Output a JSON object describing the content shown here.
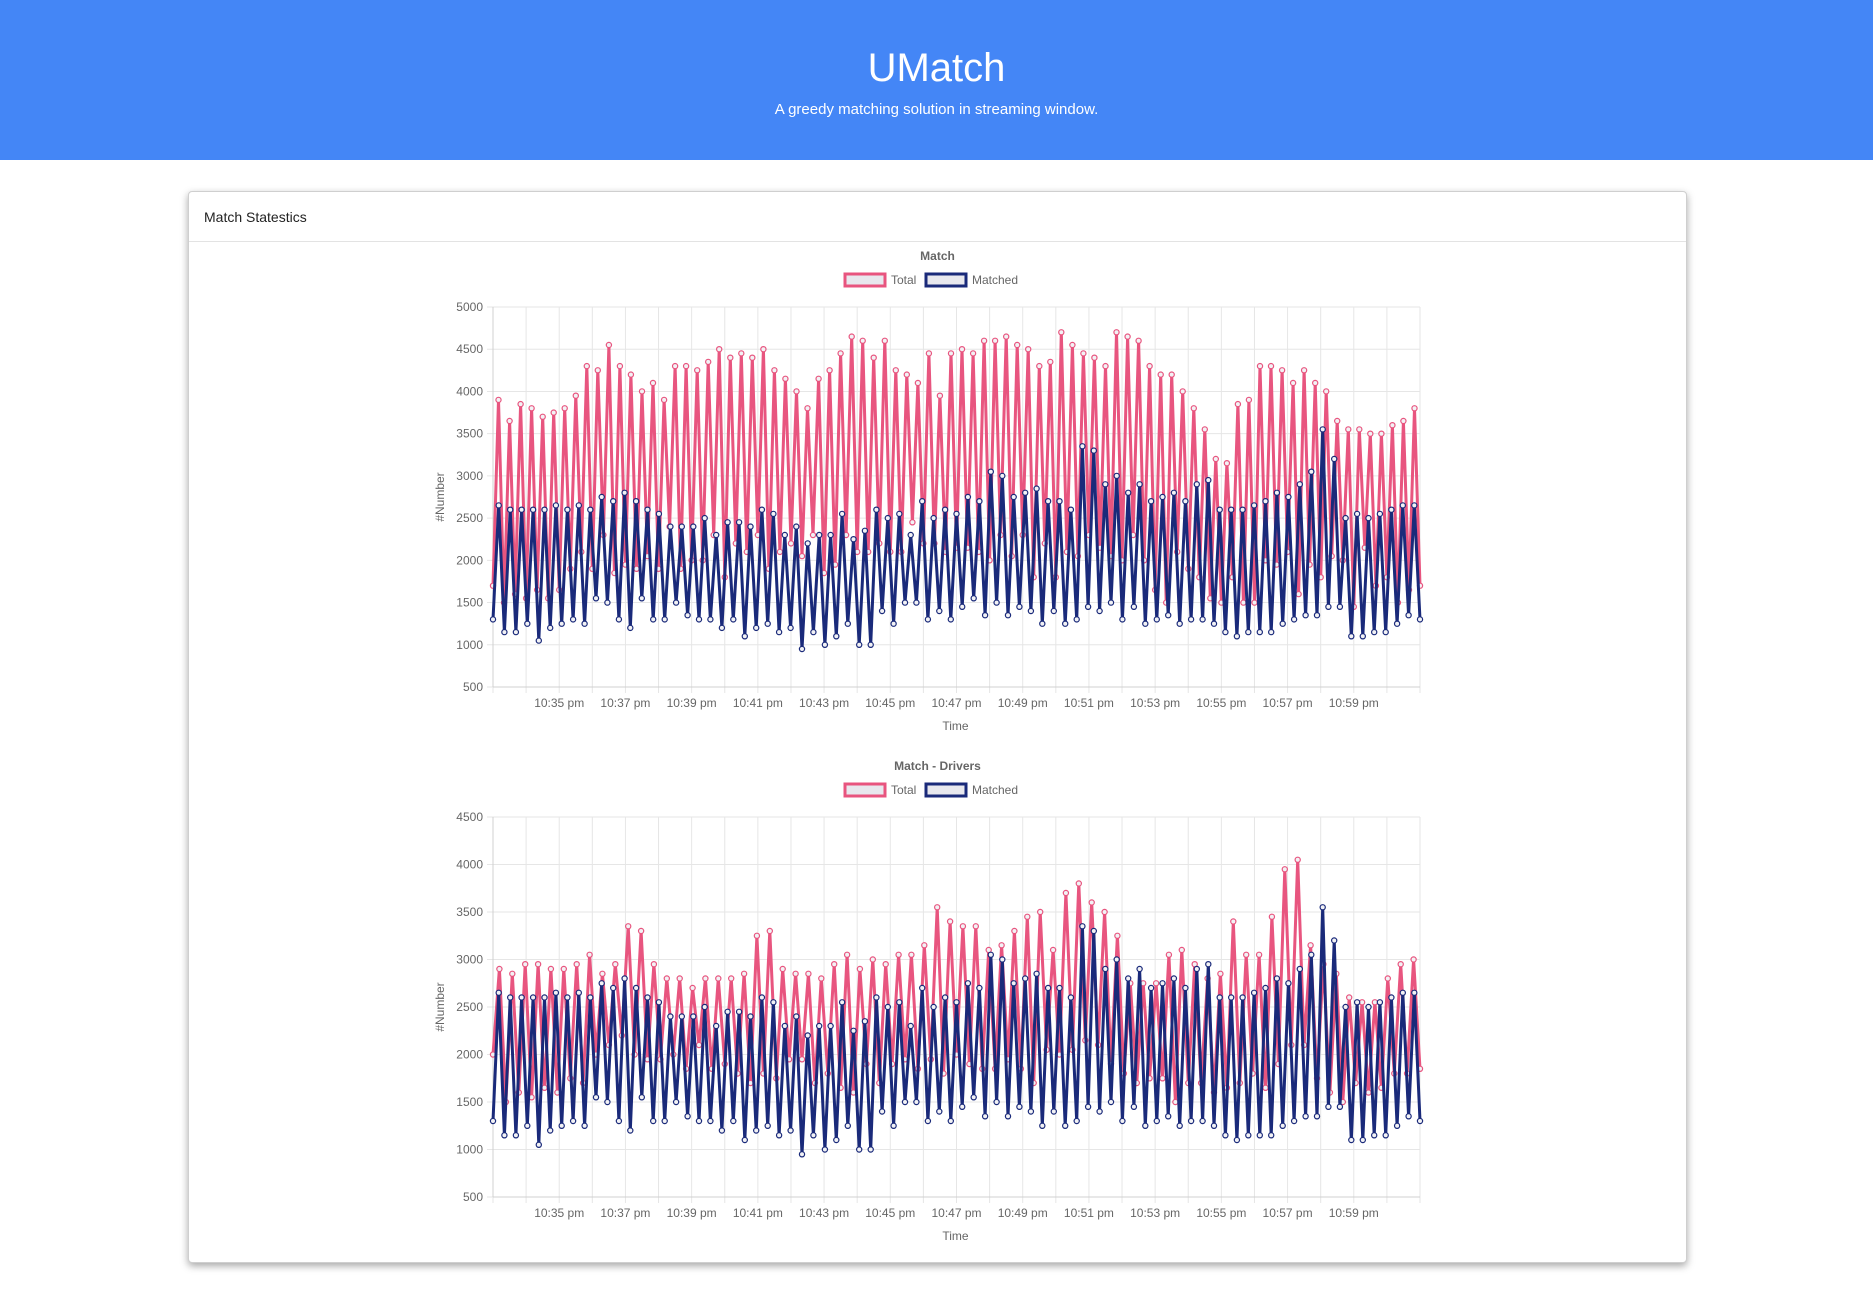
{
  "header": {
    "title": "UMatch",
    "subtitle": "A greedy matching solution in streaming window."
  },
  "card": {
    "title": "Match Statestics"
  },
  "colors": {
    "header_bg": "#4486f6",
    "total": "#e8557f",
    "matched": "#1a2a7a"
  },
  "chart_data": [
    {
      "type": "line",
      "title": "Match",
      "xlabel": "Time",
      "ylabel": "#Number",
      "ylim": [
        500,
        5000
      ],
      "yticks": [
        500,
        1000,
        1500,
        2000,
        2500,
        3000,
        3500,
        4000,
        4500,
        5000
      ],
      "xlim": [
        0,
        28
      ],
      "xticks": [
        {
          "label": "10:35 pm",
          "pos": 2
        },
        {
          "label": "10:37 pm",
          "pos": 4
        },
        {
          "label": "10:39 pm",
          "pos": 6
        },
        {
          "label": "10:41 pm",
          "pos": 8
        },
        {
          "label": "10:43 pm",
          "pos": 10
        },
        {
          "label": "10:45 pm",
          "pos": 12
        },
        {
          "label": "10:47 pm",
          "pos": 14
        },
        {
          "label": "10:49 pm",
          "pos": 16
        },
        {
          "label": "10:51 pm",
          "pos": 18
        },
        {
          "label": "10:53 pm",
          "pos": 20
        },
        {
          "label": "10:55 pm",
          "pos": 22
        },
        {
          "label": "10:57 pm",
          "pos": 24
        },
        {
          "label": "10:59 pm",
          "pos": 26
        }
      ],
      "legend": [
        "Total",
        "Matched"
      ],
      "series": [
        {
          "name": "Total",
          "values": [
            1700,
            3900,
            1500,
            3650,
            1600,
            3850,
            1550,
            3800,
            1650,
            3700,
            1550,
            3750,
            1650,
            3800,
            1900,
            3950,
            2100,
            4300,
            1900,
            4250,
            2300,
            4550,
            1850,
            4300,
            1950,
            4200,
            1900,
            4000,
            2050,
            4100,
            1900,
            3900,
            2400,
            4300,
            1900,
            4300,
            2000,
            4250,
            2000,
            4350,
            2300,
            4500,
            1800,
            4400,
            2200,
            4450,
            2100,
            4400,
            2300,
            4500,
            1900,
            4250,
            2100,
            4150,
            2200,
            4000,
            2050,
            3800,
            2300,
            4150,
            1850,
            4250,
            1950,
            4450,
            2300,
            4650,
            2100,
            4600,
            2100,
            4400,
            2200,
            4600,
            2100,
            4250,
            2100,
            4200,
            2450,
            4100,
            2200,
            4450,
            2200,
            3950,
            2100,
            4450,
            2150,
            4500,
            2150,
            4450,
            2100,
            4600,
            2000,
            4600,
            2300,
            4650,
            2050,
            4550,
            2300,
            4500,
            1800,
            4300,
            2200,
            4350,
            1800,
            4700,
            2100,
            4550,
            2050,
            4450,
            2300,
            4400,
            2150,
            4300,
            2050,
            4700,
            2000,
            4650,
            2300,
            4600,
            2000,
            4300,
            1650,
            4200,
            1500,
            4200,
            2100,
            4000,
            1900,
            3800,
            1800,
            3550,
            1550,
            3200,
            1500,
            3150,
            1800,
            3850,
            1500,
            3900,
            1500,
            4300,
            2000,
            4300,
            1950,
            4250,
            2100,
            4100,
            1600,
            4250,
            1950,
            4100,
            1800,
            4000,
            2050,
            3650,
            2000,
            3550,
            1450,
            3550,
            2150,
            3500,
            1700,
            3500,
            1800,
            3600,
            1500,
            3650,
            1650,
            3800,
            1700
          ]
        },
        {
          "name": "Matched",
          "values": [
            1300,
            2650,
            1150,
            2600,
            1150,
            2600,
            1250,
            2600,
            1050,
            2600,
            1200,
            2650,
            1250,
            2600,
            1300,
            2650,
            1250,
            2600,
            1550,
            2750,
            1500,
            2700,
            1300,
            2800,
            1200,
            2700,
            1550,
            2600,
            1300,
            2550,
            1300,
            2400,
            1500,
            2400,
            1350,
            2400,
            1300,
            2500,
            1300,
            2300,
            1200,
            2450,
            1300,
            2450,
            1100,
            2400,
            1200,
            2600,
            1250,
            2550,
            1150,
            2300,
            1200,
            2400,
            950,
            2200,
            1150,
            2300,
            1000,
            2300,
            1100,
            2550,
            1250,
            2250,
            1000,
            2350,
            1000,
            2600,
            1400,
            2500,
            1250,
            2550,
            1500,
            2300,
            1500,
            2700,
            1300,
            2500,
            1400,
            2600,
            1300,
            2550,
            1450,
            2750,
            1550,
            2700,
            1350,
            3050,
            1500,
            3000,
            1350,
            2750,
            1450,
            2800,
            1400,
            2850,
            1250,
            2700,
            1400,
            2700,
            1250,
            2600,
            1300,
            3350,
            1450,
            3300,
            1400,
            2900,
            1500,
            3000,
            1300,
            2800,
            1450,
            2900,
            1250,
            2700,
            1300,
            2750,
            1350,
            2800,
            1250,
            2700,
            1300,
            2900,
            1300,
            2950,
            1250,
            2600,
            1150,
            2600,
            1100,
            2600,
            1150,
            2650,
            1150,
            2700,
            1150,
            2800,
            1250,
            2750,
            1300,
            2900,
            1350,
            3050,
            1350,
            3550,
            1450,
            3200,
            1450,
            2500,
            1100,
            2550,
            1100,
            2500,
            1150,
            2550,
            1150,
            2600,
            1250,
            2650,
            1350,
            2650,
            1300
          ]
        }
      ]
    },
    {
      "type": "line",
      "title": "Match - Drivers",
      "xlabel": "Time",
      "ylabel": "#Number",
      "ylim": [
        500,
        4500
      ],
      "yticks": [
        500,
        1000,
        1500,
        2000,
        2500,
        3000,
        3500,
        4000,
        4500
      ],
      "xlim": [
        0,
        28
      ],
      "xticks": [
        {
          "label": "10:35 pm",
          "pos": 2
        },
        {
          "label": "10:37 pm",
          "pos": 4
        },
        {
          "label": "10:39 pm",
          "pos": 6
        },
        {
          "label": "10:41 pm",
          "pos": 8
        },
        {
          "label": "10:43 pm",
          "pos": 10
        },
        {
          "label": "10:45 pm",
          "pos": 12
        },
        {
          "label": "10:47 pm",
          "pos": 14
        },
        {
          "label": "10:49 pm",
          "pos": 16
        },
        {
          "label": "10:51 pm",
          "pos": 18
        },
        {
          "label": "10:53 pm",
          "pos": 20
        },
        {
          "label": "10:55 pm",
          "pos": 22
        },
        {
          "label": "10:57 pm",
          "pos": 24
        },
        {
          "label": "10:59 pm",
          "pos": 26
        }
      ],
      "legend": [
        "Total",
        "Matched"
      ],
      "series": [
        {
          "name": "Total",
          "values": [
            2000,
            2900,
            1500,
            2850,
            1600,
            2950,
            1550,
            2950,
            1650,
            2900,
            1600,
            2900,
            1750,
            2950,
            1700,
            3050,
            2000,
            2850,
            2100,
            2950,
            2200,
            3350,
            2000,
            3300,
            1950,
            2950,
            1950,
            2800,
            2000,
            2800,
            1850,
            2700,
            2100,
            2800,
            1850,
            2800,
            1900,
            2800,
            1800,
            2850,
            1700,
            3250,
            1800,
            3300,
            1750,
            2900,
            1950,
            2850,
            1950,
            2850,
            1700,
            2800,
            1800,
            2950,
            1650,
            3050,
            1600,
            2900,
            1900,
            3000,
            1700,
            2950,
            1900,
            3050,
            1950,
            3050,
            1850,
            3150,
            1950,
            3550,
            1800,
            3400,
            2000,
            3350,
            1900,
            3350,
            1850,
            3100,
            1850,
            3150,
            1950,
            3300,
            1850,
            3450,
            1700,
            3500,
            2050,
            3100,
            2000,
            3700,
            2050,
            3800,
            2150,
            3600,
            2100,
            3500,
            1900,
            3250,
            1800,
            2750,
            1700,
            2750,
            1750,
            2750,
            1750,
            3050,
            1500,
            3100,
            1700,
            2950,
            1700,
            2800,
            1600,
            2850,
            1650,
            3400,
            1700,
            3050,
            1800,
            3050,
            1650,
            3450,
            1900,
            3950,
            2100,
            4050,
            2100,
            3150,
            1750,
            2950,
            1600,
            2850,
            1500,
            2600,
            1700,
            2550,
            1600,
            2550,
            1650,
            2800,
            1800,
            2950,
            1800,
            3000,
            1850
          ]
        },
        {
          "name": "Matched",
          "values": [
            1300,
            2650,
            1150,
            2600,
            1150,
            2600,
            1250,
            2600,
            1050,
            2600,
            1200,
            2650,
            1250,
            2600,
            1300,
            2650,
            1250,
            2600,
            1550,
            2750,
            1500,
            2700,
            1300,
            2800,
            1200,
            2700,
            1550,
            2600,
            1300,
            2550,
            1300,
            2400,
            1500,
            2400,
            1350,
            2400,
            1300,
            2500,
            1300,
            2300,
            1200,
            2450,
            1300,
            2450,
            1100,
            2400,
            1200,
            2600,
            1250,
            2550,
            1150,
            2300,
            1200,
            2400,
            950,
            2200,
            1150,
            2300,
            1000,
            2300,
            1100,
            2550,
            1250,
            2250,
            1000,
            2350,
            1000,
            2600,
            1400,
            2500,
            1250,
            2550,
            1500,
            2300,
            1500,
            2700,
            1300,
            2500,
            1400,
            2600,
            1300,
            2550,
            1450,
            2750,
            1550,
            2700,
            1350,
            3050,
            1500,
            3000,
            1350,
            2750,
            1450,
            2800,
            1400,
            2850,
            1250,
            2700,
            1400,
            2700,
            1250,
            2600,
            1300,
            3350,
            1450,
            3300,
            1400,
            2900,
            1500,
            3000,
            1300,
            2800,
            1450,
            2900,
            1250,
            2700,
            1300,
            2750,
            1350,
            2800,
            1250,
            2700,
            1300,
            2900,
            1300,
            2950,
            1250,
            2600,
            1150,
            2600,
            1100,
            2600,
            1150,
            2650,
            1150,
            2700,
            1150,
            2800,
            1250,
            2750,
            1300,
            2900,
            1350,
            3050,
            1350,
            3550,
            1450,
            3200,
            1450,
            2500,
            1100,
            2550,
            1100,
            2500,
            1150,
            2550,
            1150,
            2600,
            1250,
            2650,
            1350,
            2650,
            1300
          ]
        }
      ]
    }
  ]
}
